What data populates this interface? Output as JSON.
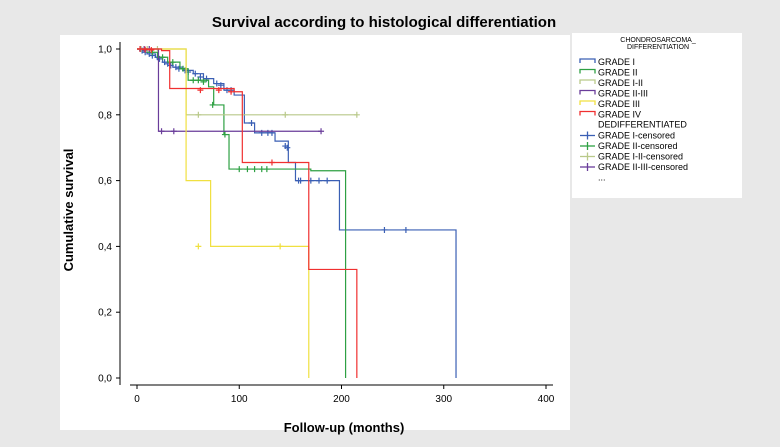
{
  "chart_data": {
    "type": "line",
    "subtype": "kaplan-meier step",
    "title": "Survival according to histological differentiation",
    "xlabel": "Follow-up (months)",
    "ylabel": "Cumulative survival",
    "xlim": [
      0,
      400
    ],
    "ylim": [
      0,
      1
    ],
    "x_ticks": [
      0,
      100,
      200,
      300,
      400
    ],
    "x_tick_labels": [
      "0",
      "100",
      "200",
      "300",
      "400"
    ],
    "y_ticks": [
      0,
      0.2,
      0.4,
      0.6,
      0.8,
      1.0
    ],
    "y_tick_labels": [
      "0,0",
      "0,2",
      "0,4",
      "0,6",
      "0,8",
      "1,0"
    ],
    "grid": false,
    "legend_position": "right",
    "legend_title": [
      "CHONDROSARCOMA_",
      "DIFFERENTIATION"
    ],
    "legend_entries": [
      {
        "label": "GRADE I",
        "color": "#3a5fb4",
        "marker": "line"
      },
      {
        "label": "GRADE II",
        "color": "#2ea043",
        "marker": "line"
      },
      {
        "label": "GRADE I-II",
        "color": "#b9c98a",
        "marker": "line"
      },
      {
        "label": "GRADE II-III",
        "color": "#6a3d9a",
        "marker": "line"
      },
      {
        "label": "GRADE III",
        "color": "#f0e040",
        "marker": "line"
      },
      {
        "label": [
          "GRADE IV",
          "DEDIFFERENTIATED"
        ],
        "color": "#f03030",
        "marker": "line"
      },
      {
        "label": "GRADE I-censored",
        "color": "#3a5fb4",
        "marker": "plus"
      },
      {
        "label": "GRADE II-censored",
        "color": "#2ea043",
        "marker": "plus"
      },
      {
        "label": "GRADE I-II-censored",
        "color": "#b9c98a",
        "marker": "plus"
      },
      {
        "label": "GRADE II-III-censored",
        "color": "#6a3d9a",
        "marker": "plus"
      },
      {
        "label": "...",
        "color": "#000000",
        "marker": "none"
      }
    ],
    "series": [
      {
        "name": "GRADE I",
        "color": "#3a5fb4",
        "steps": [
          [
            0,
            1.0
          ],
          [
            5,
            0.995
          ],
          [
            10,
            0.985
          ],
          [
            18,
            0.975
          ],
          [
            25,
            0.96
          ],
          [
            35,
            0.945
          ],
          [
            45,
            0.935
          ],
          [
            55,
            0.925
          ],
          [
            65,
            0.91
          ],
          [
            75,
            0.895
          ],
          [
            85,
            0.875
          ],
          [
            95,
            0.86
          ],
          [
            105,
            0.775
          ],
          [
            115,
            0.745
          ],
          [
            135,
            0.72
          ],
          [
            148,
            0.655
          ],
          [
            155,
            0.6
          ],
          [
            198,
            0.45
          ],
          [
            312,
            0.0
          ]
        ],
        "censored": [
          [
            5,
            0.995
          ],
          [
            8,
            0.99
          ],
          [
            12,
            0.985
          ],
          [
            15,
            0.98
          ],
          [
            20,
            0.975
          ],
          [
            22,
            0.97
          ],
          [
            27,
            0.96
          ],
          [
            30,
            0.955
          ],
          [
            33,
            0.95
          ],
          [
            38,
            0.945
          ],
          [
            41,
            0.94
          ],
          [
            47,
            0.935
          ],
          [
            50,
            0.93
          ],
          [
            57,
            0.925
          ],
          [
            62,
            0.915
          ],
          [
            68,
            0.91
          ],
          [
            78,
            0.895
          ],
          [
            82,
            0.89
          ],
          [
            88,
            0.875
          ],
          [
            92,
            0.875
          ],
          [
            112,
            0.775
          ],
          [
            122,
            0.745
          ],
          [
            128,
            0.745
          ],
          [
            132,
            0.745
          ],
          [
            145,
            0.705
          ],
          [
            147,
            0.7
          ],
          [
            158,
            0.6
          ],
          [
            160,
            0.6
          ],
          [
            170,
            0.6
          ],
          [
            178,
            0.6
          ],
          [
            186,
            0.6
          ],
          [
            242,
            0.45
          ],
          [
            263,
            0.45
          ]
        ]
      },
      {
        "name": "GRADE II",
        "color": "#2ea043",
        "steps": [
          [
            0,
            1.0
          ],
          [
            10,
            0.99
          ],
          [
            20,
            0.975
          ],
          [
            30,
            0.96
          ],
          [
            42,
            0.94
          ],
          [
            50,
            0.905
          ],
          [
            70,
            0.885
          ],
          [
            75,
            0.83
          ],
          [
            85,
            0.74
          ],
          [
            90,
            0.635
          ],
          [
            170,
            0.63
          ],
          [
            204,
            0.0
          ]
        ],
        "censored": [
          [
            15,
            0.99
          ],
          [
            25,
            0.975
          ],
          [
            35,
            0.96
          ],
          [
            45,
            0.94
          ],
          [
            55,
            0.905
          ],
          [
            60,
            0.905
          ],
          [
            65,
            0.9
          ],
          [
            74,
            0.83
          ],
          [
            86,
            0.74
          ],
          [
            100,
            0.635
          ],
          [
            108,
            0.635
          ],
          [
            115,
            0.635
          ],
          [
            122,
            0.635
          ],
          [
            127,
            0.635
          ]
        ]
      },
      {
        "name": "GRADE I-II",
        "color": "#b9c98a",
        "steps": [
          [
            0,
            1.0
          ],
          [
            40,
            1.0
          ],
          [
            48,
            0.8
          ],
          [
            215,
            0.8
          ]
        ],
        "censored": [
          [
            4,
            1.0
          ],
          [
            10,
            1.0
          ],
          [
            20,
            1.0
          ],
          [
            60,
            0.8
          ],
          [
            145,
            0.8
          ],
          [
            215,
            0.8
          ]
        ]
      },
      {
        "name": "GRADE II-III",
        "color": "#6a3d9a",
        "steps": [
          [
            0,
            1.0
          ],
          [
            18,
            1.0
          ],
          [
            21,
            0.75
          ],
          [
            180,
            0.75
          ]
        ],
        "censored": [
          [
            3,
            1.0
          ],
          [
            7,
            1.0
          ],
          [
            12,
            1.0
          ],
          [
            24,
            0.75
          ],
          [
            36,
            0.75
          ],
          [
            180,
            0.75
          ]
        ]
      },
      {
        "name": "GRADE III",
        "color": "#f0e040",
        "steps": [
          [
            0,
            1.0
          ],
          [
            25,
            1.0
          ],
          [
            48,
            0.6
          ],
          [
            72,
            0.4
          ],
          [
            168,
            0.0
          ]
        ],
        "censored": [
          [
            60,
            0.4
          ],
          [
            140,
            0.4
          ]
        ]
      },
      {
        "name": "GRADE IV DEDIFFERENTIATED",
        "color": "#f03030",
        "steps": [
          [
            0,
            1.0
          ],
          [
            24,
            0.995
          ],
          [
            32,
            0.88
          ],
          [
            95,
            0.87
          ],
          [
            103,
            0.655
          ],
          [
            168,
            0.33
          ],
          [
            215,
            0.0
          ]
        ],
        "censored": [
          [
            3,
            1.0
          ],
          [
            8,
            0.998
          ],
          [
            14,
            0.997
          ],
          [
            62,
            0.875
          ],
          [
            80,
            0.875
          ],
          [
            92,
            0.87
          ],
          [
            132,
            0.655
          ]
        ]
      }
    ]
  }
}
